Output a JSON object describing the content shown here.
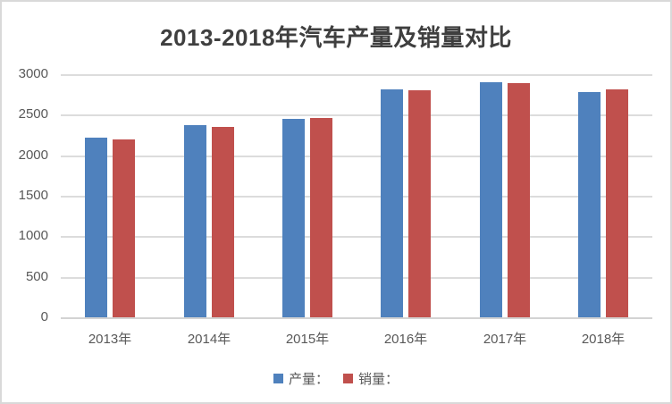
{
  "chart_data": {
    "type": "bar",
    "title": "2013-2018年汽车产量及销量对比",
    "categories": [
      "2013年",
      "2014年",
      "2015年",
      "2016年",
      "2017年",
      "2018年"
    ],
    "series": [
      {
        "key": "production",
        "name": "产量：",
        "color": "#4F81BD",
        "values": [
          2212,
          2372,
          2450,
          2812,
          2902,
          2781
        ]
      },
      {
        "key": "sales",
        "name": "销量：",
        "color": "#C0504D",
        "values": [
          2198,
          2349,
          2460,
          2803,
          2888,
          2808
        ]
      }
    ],
    "xlabel": "",
    "ylabel": "",
    "ylim": [
      0,
      3000
    ],
    "yticks": [
      "0",
      "500",
      "1000",
      "1500",
      "2000",
      "2500",
      "3000"
    ],
    "grid": true,
    "legend_position": "bottom"
  },
  "colors": {
    "production_bar": "#4F81BD",
    "sales_bar": "#C0504D",
    "gridline": "#DCDCDC",
    "axis_text": "#595959",
    "title_text": "#3F3F3F",
    "frame_border": "#D9D9D9",
    "background": "#FFFFFF"
  }
}
